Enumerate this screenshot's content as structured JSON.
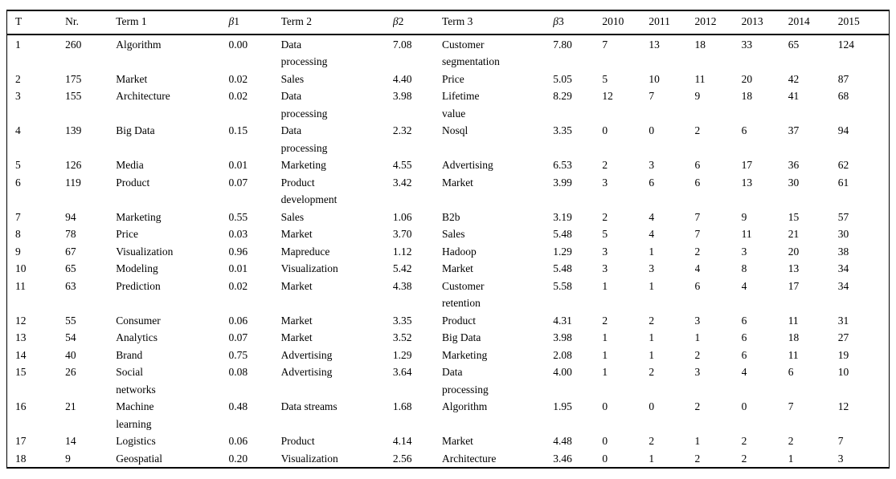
{
  "table": {
    "columns": [
      "T",
      "Nr.",
      "Term 1",
      "β1",
      "Term 2",
      "β2",
      "Term 3",
      "β3",
      "2010",
      "2011",
      "2012",
      "2013",
      "2014",
      "2015"
    ],
    "rows": [
      [
        "1",
        "260",
        "Algorithm",
        "0.00",
        "Data\nprocessing",
        "7.08",
        "Customer\nsegmentation",
        "7.80",
        "7",
        "13",
        "18",
        "33",
        "65",
        "124"
      ],
      [
        "2",
        "175",
        "Market",
        "0.02",
        "Sales",
        "4.40",
        "Price",
        "5.05",
        "5",
        "10",
        "11",
        "20",
        "42",
        "87"
      ],
      [
        "3",
        "155",
        "Architecture",
        "0.02",
        "Data\nprocessing",
        "3.98",
        "Lifetime\nvalue",
        "8.29",
        "12",
        "7",
        "9",
        "18",
        "41",
        "68"
      ],
      [
        "4",
        "139",
        "Big Data",
        "0.15",
        "Data\nprocessing",
        "2.32",
        "Nosql",
        "3.35",
        "0",
        "0",
        "2",
        "6",
        "37",
        "94"
      ],
      [
        "5",
        "126",
        "Media",
        "0.01",
        "Marketing",
        "4.55",
        "Advertising",
        "6.53",
        "2",
        "3",
        "6",
        "17",
        "36",
        "62"
      ],
      [
        "6",
        "119",
        "Product",
        "0.07",
        "Product\ndevelopment",
        "3.42",
        "Market",
        "3.99",
        "3",
        "6",
        "6",
        "13",
        "30",
        "61"
      ],
      [
        "7",
        "94",
        "Marketing",
        "0.55",
        "Sales",
        "1.06",
        "B2b",
        "3.19",
        "2",
        "4",
        "7",
        "9",
        "15",
        "57"
      ],
      [
        "8",
        "78",
        "Price",
        "0.03",
        "Market",
        "3.70",
        "Sales",
        "5.48",
        "5",
        "4",
        "7",
        "11",
        "21",
        "30"
      ],
      [
        "9",
        "67",
        "Visualization",
        "0.96",
        "Mapreduce",
        "1.12",
        "Hadoop",
        "1.29",
        "3",
        "1",
        "2",
        "3",
        "20",
        "38"
      ],
      [
        "10",
        "65",
        "Modeling",
        "0.01",
        "Visualization",
        "5.42",
        "Market",
        "5.48",
        "3",
        "3",
        "4",
        "8",
        "13",
        "34"
      ],
      [
        "11",
        "63",
        "Prediction",
        "0.02",
        "Market",
        "4.38",
        "Customer\nretention",
        "5.58",
        "1",
        "1",
        "6",
        "4",
        "17",
        "34"
      ],
      [
        "12",
        "55",
        "Consumer",
        "0.06",
        "Market",
        "3.35",
        "Product",
        "4.31",
        "2",
        "2",
        "3",
        "6",
        "11",
        "31"
      ],
      [
        "13",
        "54",
        "Analytics",
        "0.07",
        "Market",
        "3.52",
        "Big Data",
        "3.98",
        "1",
        "1",
        "1",
        "6",
        "18",
        "27"
      ],
      [
        "14",
        "40",
        "Brand",
        "0.75",
        "Advertising",
        "1.29",
        "Marketing",
        "2.08",
        "1",
        "1",
        "2",
        "6",
        "11",
        "19"
      ],
      [
        "15",
        "26",
        "Social\nnetworks",
        "0.08",
        "Advertising",
        "3.64",
        "Data\nprocessing",
        "4.00",
        "1",
        "2",
        "3",
        "4",
        "6",
        "10"
      ],
      [
        "16",
        "21",
        "Machine\nlearning",
        "0.48",
        "Data streams",
        "1.68",
        "Algorithm",
        "1.95",
        "0",
        "0",
        "2",
        "0",
        "7",
        "12"
      ],
      [
        "17",
        "14",
        "Logistics",
        "0.06",
        "Product",
        "4.14",
        "Market",
        "4.48",
        "0",
        "2",
        "1",
        "2",
        "2",
        "7"
      ],
      [
        "18",
        "9",
        "Geospatial",
        "0.20",
        "Visualization",
        "2.56",
        "Architecture",
        "3.46",
        "0",
        "1",
        "2",
        "2",
        "1",
        "3"
      ]
    ]
  }
}
